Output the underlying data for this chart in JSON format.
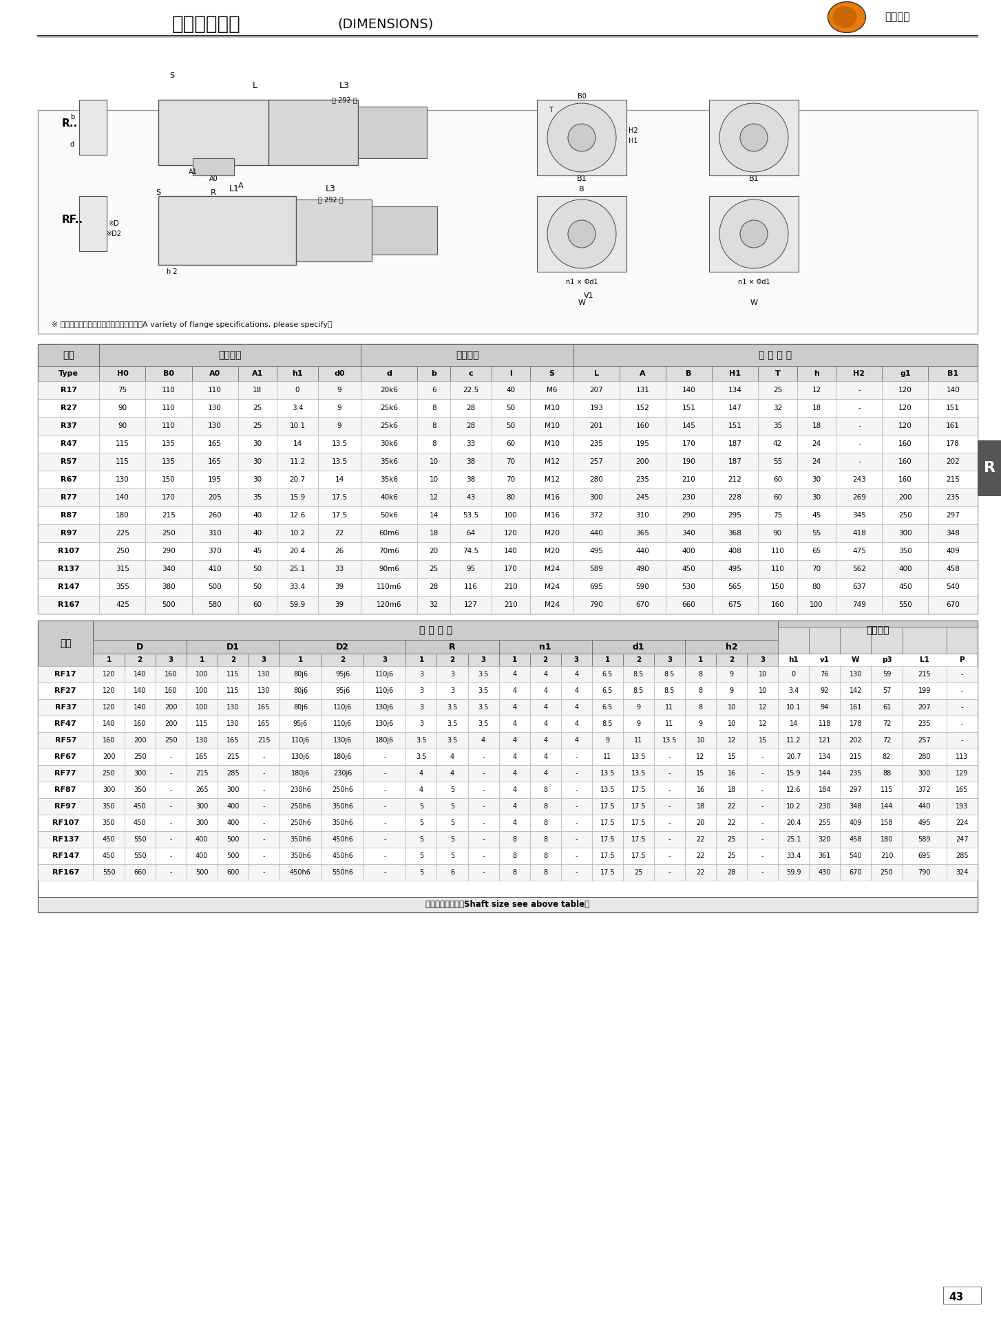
{
  "title_cn": "外形安装尺寸",
  "title_en": "(DIMENSIONS)",
  "company": "德传机械",
  "page_num": "43",
  "tab_label": "R",
  "note": "※ 法兰联接参数有多种，订货时请注明。（A variety of flange specifications, please specify）",
  "table1_header_row1": [
    "型号",
    "安装尺寸",
    "",
    "",
    "",
    "",
    "轴伸尺寸",
    "",
    "",
    "",
    "外 型 尺 寸",
    "",
    "",
    "",
    "",
    "",
    "",
    "",
    ""
  ],
  "table1_header_row2": [
    "Type",
    "H0",
    "B0",
    "A0",
    "A1",
    "h1",
    "d0",
    "d",
    "b",
    "c",
    "l",
    "S",
    "L",
    "A",
    "B",
    "H1",
    "T",
    "h",
    "H2",
    "g1",
    "B1"
  ],
  "table1_data": [
    [
      "R17",
      "75",
      "110",
      "110",
      "18",
      "0",
      "9",
      "20k6",
      "6",
      "22.5",
      "40",
      "M6",
      "207",
      "131",
      "140",
      "134",
      "25",
      "12",
      "-",
      "120",
      "140"
    ],
    [
      "R27",
      "90",
      "110",
      "130",
      "25",
      "3.4",
      "9",
      "25k6",
      "8",
      "28",
      "50",
      "M10",
      "193",
      "152",
      "151",
      "147",
      "32",
      "18",
      "-",
      "120",
      "151"
    ],
    [
      "R37",
      "90",
      "110",
      "130",
      "25",
      "10.1",
      "9",
      "25k6",
      "8",
      "28",
      "50",
      "M10",
      "201",
      "160",
      "145",
      "151",
      "35",
      "18",
      "-",
      "120",
      "161"
    ],
    [
      "R47",
      "115",
      "135",
      "165",
      "30",
      "14",
      "13.5",
      "30k6",
      "8",
      "33",
      "60",
      "M10",
      "235",
      "195",
      "170",
      "187",
      "42",
      "24",
      "-",
      "160",
      "178"
    ],
    [
      "R57",
      "115",
      "135",
      "165",
      "30",
      "11.2",
      "13.5",
      "35k6",
      "10",
      "38",
      "70",
      "M12",
      "257",
      "200",
      "190",
      "187",
      "55",
      "24",
      "-",
      "160",
      "202"
    ],
    [
      "R67",
      "130",
      "150",
      "195",
      "30",
      "20.7",
      "14",
      "35k6",
      "10",
      "38",
      "70",
      "M12",
      "280",
      "235",
      "210",
      "212",
      "60",
      "30",
      "243",
      "160",
      "215"
    ],
    [
      "R77",
      "140",
      "170",
      "205",
      "35",
      "15.9",
      "17.5",
      "40k6",
      "12",
      "43",
      "80",
      "M16",
      "300",
      "245",
      "230",
      "228",
      "60",
      "30",
      "269",
      "200",
      "235"
    ],
    [
      "R87",
      "180",
      "215",
      "260",
      "40",
      "12.6",
      "17.5",
      "50k6",
      "14",
      "53.5",
      "100",
      "M16",
      "372",
      "310",
      "290",
      "295",
      "75",
      "45",
      "345",
      "250",
      "297"
    ],
    [
      "R97",
      "225",
      "250",
      "310",
      "40",
      "10.2",
      "22",
      "60m6",
      "18",
      "64",
      "120",
      "M20",
      "440",
      "365",
      "340",
      "368",
      "90",
      "55",
      "418",
      "300",
      "348"
    ],
    [
      "R107",
      "250",
      "290",
      "370",
      "45",
      "20.4",
      "26",
      "70m6",
      "20",
      "74.5",
      "140",
      "M20",
      "495",
      "440",
      "400",
      "408",
      "110",
      "65",
      "475",
      "350",
      "409"
    ],
    [
      "R137",
      "315",
      "340",
      "410",
      "50",
      "25.1",
      "33",
      "90m6",
      "25",
      "95",
      "170",
      "M24",
      "589",
      "490",
      "450",
      "495",
      "110",
      "70",
      "562",
      "400",
      "458"
    ],
    [
      "R147",
      "355",
      "380",
      "500",
      "50",
      "33.4",
      "39",
      "110m6",
      "28",
      "116",
      "210",
      "M24",
      "695",
      "590",
      "530",
      "565",
      "150",
      "80",
      "637",
      "450",
      "540"
    ],
    [
      "R167",
      "425",
      "500",
      "580",
      "60",
      "59.9",
      "39",
      "120m6",
      "32",
      "127",
      "210",
      "M24",
      "790",
      "670",
      "660",
      "675",
      "160",
      "100",
      "749",
      "550",
      "670"
    ]
  ],
  "table2_header_row1": [
    "型号",
    "安 装 尺 寸",
    "",
    "",
    "",
    "",
    "",
    "",
    "",
    "",
    "",
    "",
    "",
    "",
    "",
    "",
    "",
    "",
    "",
    "",
    "",
    "外型尺寸",
    "",
    "",
    "",
    "",
    ""
  ],
  "table2_header_row2": [
    "",
    "D",
    "",
    "",
    "D1",
    "",
    "",
    "D2",
    "",
    "",
    "R",
    "",
    "",
    "n1",
    "",
    "",
    "d1",
    "",
    "",
    "h2",
    "",
    "",
    "",
    "",
    "",
    "",
    "",
    ""
  ],
  "table2_header_row3": [
    "Type",
    "1",
    "2",
    "3",
    "1",
    "2",
    "3",
    "1",
    "2",
    "3",
    "1",
    "2",
    "3",
    "1",
    "2",
    "3",
    "1",
    "2",
    "3",
    "1",
    "2",
    "3",
    "h1",
    "v1",
    "W",
    "p3",
    "L1",
    "P"
  ],
  "table2_data": [
    [
      "RF17",
      "120",
      "140",
      "160",
      "100",
      "115",
      "130",
      "80j6",
      "95j6",
      "110j6",
      "3",
      "3",
      "3.5",
      "4",
      "4",
      "4",
      "6.5",
      "8.5",
      "8.5",
      "8",
      "9",
      "10",
      "0",
      "76",
      "130",
      "59",
      "215",
      "-"
    ],
    [
      "RF27",
      "120",
      "140",
      "160",
      "100",
      "115",
      "130",
      "80j6",
      "95j6",
      "110j6",
      "3",
      "3",
      "3.5",
      "4",
      "4",
      "4",
      "6.5",
      "8.5",
      "8.5",
      "8",
      "9",
      "10",
      "3.4",
      "92",
      "142",
      "57",
      "199",
      "-"
    ],
    [
      "RF37",
      "120",
      "140",
      "200",
      "100",
      "130",
      "165",
      "80j6",
      "110j6",
      "130j6",
      "3",
      "3.5",
      "3.5",
      "4",
      "4",
      "4",
      "6.5",
      "9",
      "11",
      "8",
      "10",
      "12",
      "10.1",
      "94",
      "161",
      "61",
      "207",
      "-"
    ],
    [
      "RF47",
      "140",
      "160",
      "200",
      "115",
      "130",
      "165",
      "95j6",
      "110j6",
      "130j6",
      "3",
      "3.5",
      "3.5",
      "4",
      "4",
      "4",
      "8.5",
      "9",
      "11",
      "9",
      "10",
      "12",
      "14",
      "118",
      "178",
      "72",
      "235",
      "-"
    ],
    [
      "RF57",
      "160",
      "200",
      "250",
      "130",
      "165",
      "215",
      "110j6",
      "130j6",
      "180j6",
      "3.5",
      "3.5",
      "4",
      "4",
      "4",
      "4",
      "9",
      "11",
      "13.5",
      "10",
      "12",
      "15",
      "11.2",
      "121",
      "202",
      "72",
      "257",
      "-"
    ],
    [
      "RF67",
      "200",
      "250",
      "-",
      "165",
      "215",
      "-",
      "130j6",
      "180j6",
      "-",
      "3.5",
      "4",
      "-",
      "4",
      "4",
      "-",
      "11",
      "13.5",
      "-",
      "12",
      "15",
      "-",
      "20.7",
      "134",
      "215",
      "82",
      "280",
      "113"
    ],
    [
      "RF77",
      "250",
      "300",
      "-",
      "215",
      "285",
      "-",
      "180j6",
      "230j6",
      "-",
      "4",
      "4",
      "-",
      "4",
      "4",
      "-",
      "13.5",
      "13.5",
      "-",
      "15",
      "16",
      "-",
      "15.9",
      "144",
      "235",
      "88",
      "300",
      "129"
    ],
    [
      "RF87",
      "300",
      "350",
      "-",
      "265",
      "300",
      "-",
      "230h6",
      "250h6",
      "-",
      "4",
      "5",
      "-",
      "4",
      "8",
      "-",
      "13.5",
      "17.5",
      "-",
      "16",
      "18",
      "-",
      "12.6",
      "184",
      "297",
      "115",
      "372",
      "165"
    ],
    [
      "RF97",
      "350",
      "450",
      "-",
      "300",
      "400",
      "-",
      "250h6",
      "350h6",
      "-",
      "5",
      "5",
      "-",
      "4",
      "8",
      "-",
      "17.5",
      "17.5",
      "-",
      "18",
      "22",
      "-",
      "10.2",
      "230",
      "348",
      "144",
      "440",
      "193"
    ],
    [
      "RF107",
      "350",
      "450",
      "-",
      "300",
      "400",
      "-",
      "250h6",
      "350h6",
      "-",
      "5",
      "5",
      "-",
      "4",
      "8",
      "-",
      "17.5",
      "17.5",
      "-",
      "20",
      "22",
      "-",
      "20.4",
      "255",
      "409",
      "158",
      "495",
      "224"
    ],
    [
      "RF137",
      "450",
      "550",
      "-",
      "400",
      "500",
      "-",
      "350h6",
      "450h6",
      "-",
      "5",
      "5",
      "-",
      "8",
      "8",
      "-",
      "17.5",
      "17.5",
      "-",
      "22",
      "25",
      "-",
      "25.1",
      "320",
      "458",
      "180",
      "589",
      "247"
    ],
    [
      "RF147",
      "450",
      "550",
      "-",
      "400",
      "500",
      "-",
      "350h6",
      "450h6",
      "-",
      "5",
      "5",
      "-",
      "8",
      "8",
      "-",
      "17.5",
      "17.5",
      "-",
      "22",
      "25",
      "-",
      "33.4",
      "361",
      "540",
      "210",
      "695",
      "285"
    ],
    [
      "RF167",
      "550",
      "660",
      "-",
      "500",
      "600",
      "-",
      "450h6",
      "550h6",
      "-",
      "5",
      "6",
      "-",
      "8",
      "8",
      "-",
      "17.5",
      "25",
      "-",
      "22",
      "28",
      "-",
      "59.9",
      "430",
      "670",
      "250",
      "790",
      "324"
    ]
  ],
  "table2_footer": "轴伸尺寸同上表（Shaft size see above table）",
  "bg_color": "#ffffff",
  "header_bg": "#d0d0d0",
  "row_alt_bg": "#f0f0f0",
  "border_color": "#666666",
  "text_color": "#000000",
  "title_color": "#000000",
  "orange_color": "#E87C0A"
}
